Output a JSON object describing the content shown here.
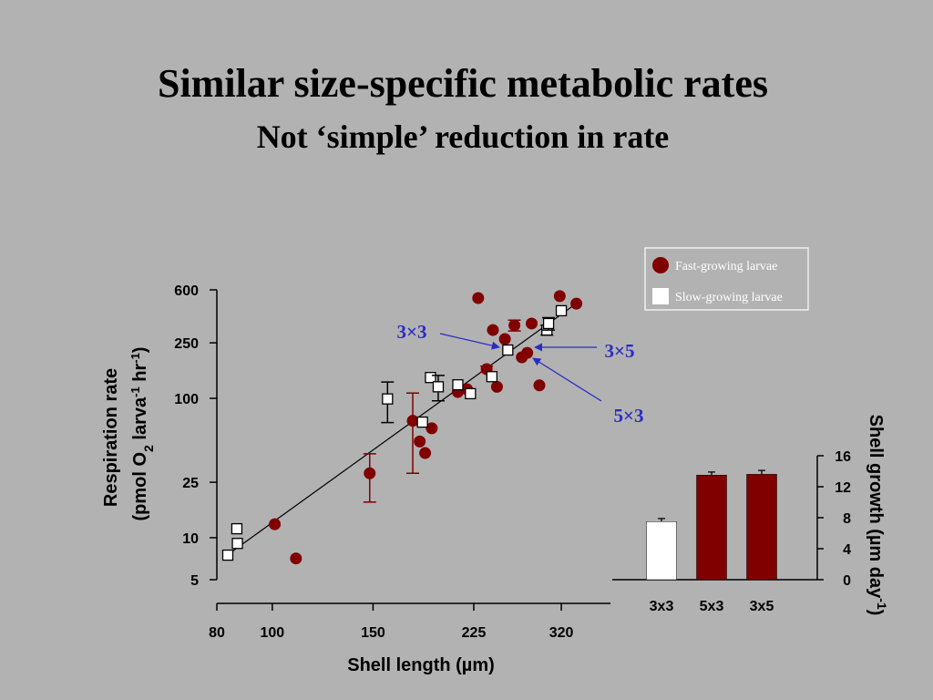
{
  "slide": {
    "title": "Similar size-specific metabolic rates",
    "subtitle": "Not ‘simple’ reduction in rate"
  },
  "chart_data": [
    {
      "type": "scatter",
      "x_label": "Shell length (µm)",
      "y_label": [
        "Respiration rate",
        "(pmol O",
        "2",
        " larva",
        "-1",
        " hr",
        "-1",
        ")"
      ],
      "log_x": true,
      "log_y": true,
      "xlim": [
        80,
        390
      ],
      "xticks": [
        80,
        100,
        150,
        225,
        320
      ],
      "ylim": [
        5,
        600
      ],
      "yticks": [
        5,
        10,
        25,
        100,
        250,
        600
      ],
      "legend": "top-right",
      "series": [
        {
          "name": "Fast-growing larvae",
          "color": "#800000",
          "marker": "circle",
          "x": [
            101,
            110,
            148,
            176,
            181,
            185,
            190,
            211,
            219,
            229,
            237,
            243,
            247,
            255,
            265,
            273,
            279,
            284,
            293,
            318,
            340
          ],
          "values": [
            12.5,
            7.1,
            29,
            69,
            49,
            40.5,
            61,
            111,
            116,
            524,
            162,
            309,
            121,
            266,
            334,
            197,
            212,
            344,
            124,
            541,
            478
          ],
          "errors": [
            null,
            null,
            11,
            40,
            null,
            null,
            null,
            null,
            null,
            null,
            8,
            null,
            null,
            null,
            30,
            null,
            null,
            null,
            null,
            null,
            null
          ]
        },
        {
          "name": "Slow-growing larvae",
          "color": "#ffffff",
          "marker": "square",
          "x": [
            83.6,
            86.7,
            86.9,
            159,
            183,
            189,
            195,
            211,
            222,
            242,
            258,
            302,
            304,
            320
          ],
          "values": [
            7.5,
            11.6,
            9.1,
            99,
            67.5,
            141,
            121,
            125,
            108,
            143,
            222,
            309,
            344,
            425
          ],
          "errors": [
            null,
            null,
            null,
            32,
            null,
            null,
            25,
            null,
            null,
            null,
            null,
            25,
            35,
            null
          ]
        }
      ],
      "fit_line": {
        "x": [
          83,
          345
        ],
        "values": [
          7.4,
          500
        ]
      },
      "annotations": [
        "3×3",
        "3×5",
        "5×3"
      ]
    },
    {
      "type": "bar",
      "categories": [
        "3x3",
        "5x3",
        "3x5"
      ],
      "values": [
        7.5,
        13.5,
        13.6
      ],
      "errors": [
        0.4,
        0.4,
        0.5
      ],
      "colors": [
        "#ffffff",
        "#800000",
        "#800000"
      ],
      "y_label": [
        "Shell growth (µm day",
        "-1",
        ")"
      ],
      "ylim": [
        0,
        16
      ],
      "yticks": [
        0,
        4,
        8,
        12,
        16
      ]
    }
  ]
}
